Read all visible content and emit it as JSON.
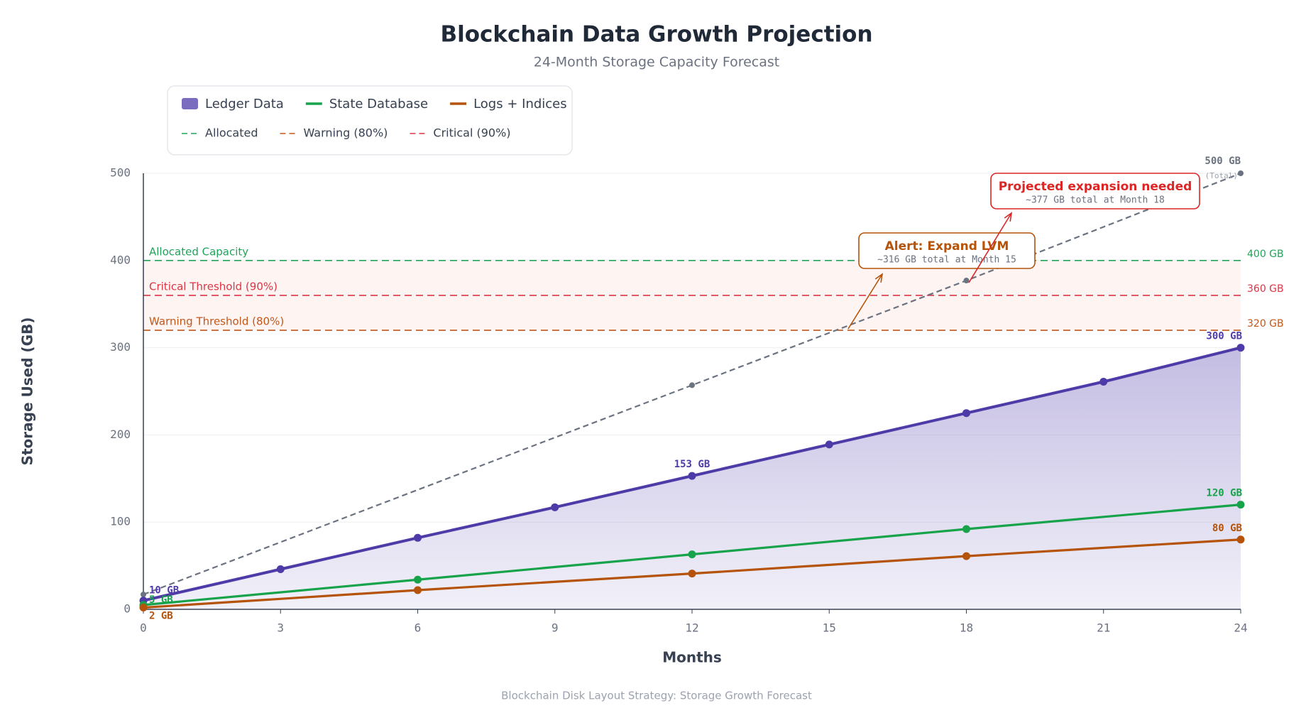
{
  "chart_data": {
    "type": "line",
    "title": "Blockchain Data Growth Projection",
    "subtitle": "24-Month Storage Capacity Forecast",
    "x_label": "Months",
    "y_label": "Storage Used (GB)",
    "footer": "Blockchain Disk Layout Strategy: Storage Growth Forecast",
    "xlim": [
      0,
      24
    ],
    "xticks": [
      0,
      3,
      6,
      9,
      12,
      15,
      18,
      21,
      24
    ],
    "ylim": [
      0,
      500
    ],
    "yticks": [
      0,
      100,
      200,
      300,
      400,
      500
    ],
    "grid": true,
    "series": [
      {
        "name": "Ledger Data",
        "color": "#4f3ba8",
        "area_color": "#7b6cc0",
        "area": true,
        "x": [
          0,
          3,
          6,
          9,
          12,
          15,
          18,
          21,
          24
        ],
        "values": [
          10,
          46,
          82,
          117,
          153,
          189,
          225,
          261,
          300
        ],
        "value_labels": [
          "10 GB",
          null,
          null,
          null,
          "153 GB",
          null,
          null,
          null,
          "300 GB"
        ]
      },
      {
        "name": "State Database",
        "color": "#16a34a",
        "x": [
          0,
          6,
          12,
          18,
          24
        ],
        "values": [
          5,
          34,
          63,
          92,
          120
        ],
        "value_labels": [
          "5 GB",
          null,
          null,
          null,
          "120 GB"
        ]
      },
      {
        "name": "Logs + Indices",
        "color": "#b45309",
        "x": [
          0,
          6,
          12,
          18,
          24
        ],
        "values": [
          2,
          22,
          41,
          61,
          80
        ],
        "value_labels": [
          "2 GB",
          null,
          null,
          null,
          "80 GB"
        ]
      }
    ],
    "total": {
      "color": "#6b7280",
      "x": [
        0,
        12,
        18,
        24
      ],
      "values": [
        17,
        257,
        377,
        500
      ],
      "value_labels": [
        null,
        null,
        null,
        "500 GB"
      ],
      "note": "(Total)"
    },
    "thresholds": [
      {
        "legend": "Allocated",
        "label": "Allocated Capacity",
        "value": 400,
        "value_label": "400 GB",
        "color": "#22a35a"
      },
      {
        "legend": "Warning (80%)",
        "label": "Warning Threshold (80%)",
        "value": 320,
        "value_label": "320 GB",
        "color": "#c2571a"
      },
      {
        "legend": "Critical (90%)",
        "label": "Critical Threshold (90%)",
        "value": 360,
        "value_label": "360 GB",
        "color": "#dc3545"
      }
    ],
    "annotations": [
      {
        "title": "Alert: Expand LVM",
        "text": "~316 GB total at Month 15",
        "color": "#b45309"
      },
      {
        "title": "Projected expansion needed",
        "text": "~377 GB total at Month 18",
        "color": "#dc2626"
      }
    ]
  }
}
